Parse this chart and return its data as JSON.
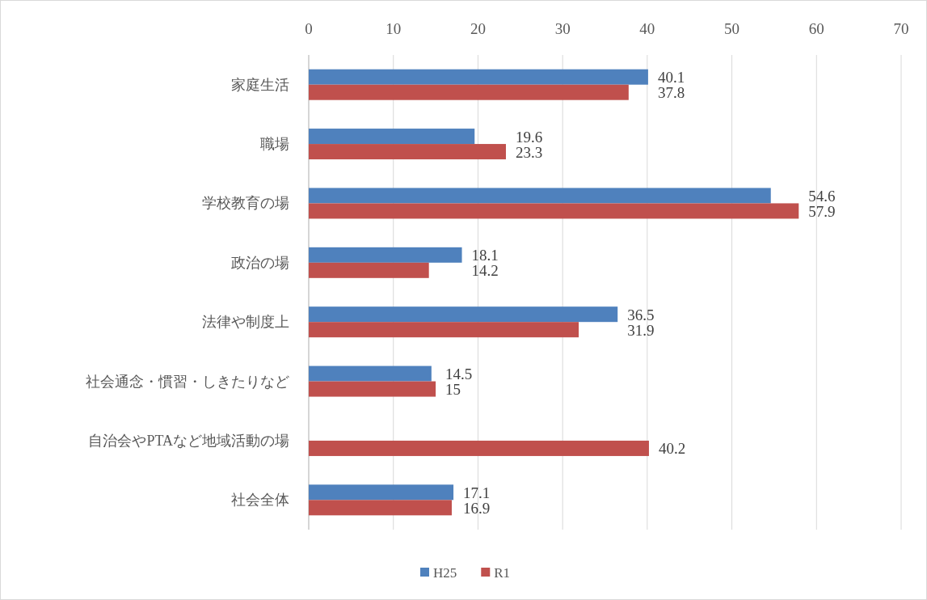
{
  "chart_data": {
    "type": "bar",
    "orientation": "horizontal",
    "categories": [
      "家庭生活",
      "職場",
      "学校教育の場",
      "政治の場",
      "法律や制度上",
      "社会通念・慣習・しきたりなど",
      "自治会やPTAなど地域活動の場",
      "社会全体"
    ],
    "series": [
      {
        "name": "H25",
        "color": "#4f81bd",
        "values": [
          40.1,
          19.6,
          54.6,
          18.1,
          36.5,
          14.5,
          null,
          17.1
        ]
      },
      {
        "name": "R1",
        "color": "#c0504d",
        "values": [
          37.8,
          23.3,
          57.9,
          14.2,
          31.9,
          15,
          40.2,
          16.9
        ]
      }
    ],
    "xlim": [
      0,
      70
    ],
    "xticks": [
      0,
      10,
      20,
      30,
      40,
      50,
      60,
      70
    ],
    "grid": "x",
    "legend": "bottom",
    "data_labels": true
  }
}
